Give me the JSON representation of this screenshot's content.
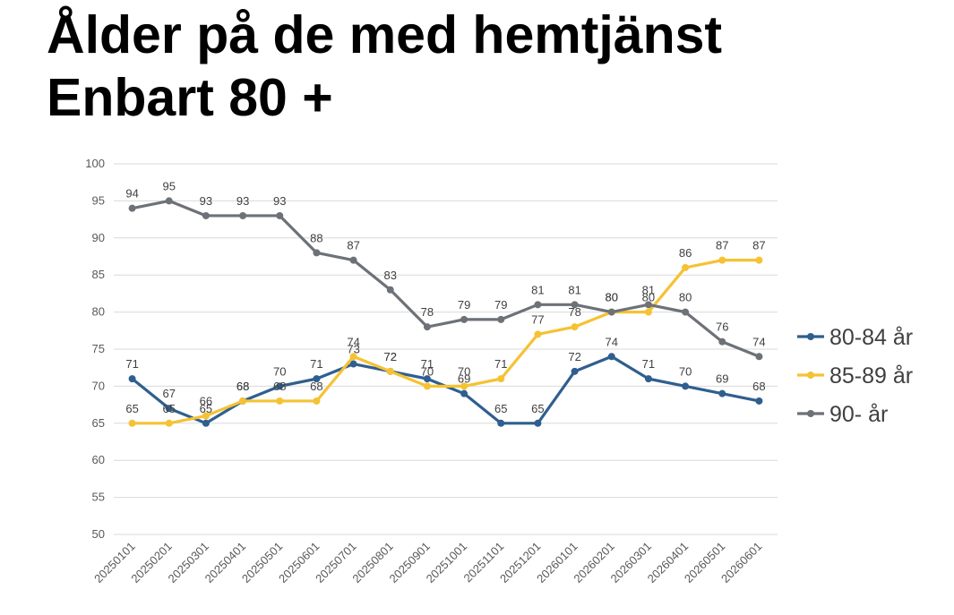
{
  "title_line1": "Ålder på de med hemtjänst",
  "title_line2": "Enbart 80 +",
  "chart_data": {
    "type": "line",
    "categories": [
      "20250101",
      "20250201",
      "20250301",
      "20250401",
      "20250501",
      "20250601",
      "20250701",
      "20250801",
      "20250901",
      "20251001",
      "20251101",
      "20251201",
      "20260101",
      "20260201",
      "20260301",
      "20260401",
      "20260501",
      "20260601"
    ],
    "ylim": [
      50,
      100
    ],
    "yticks": [
      50,
      55,
      60,
      65,
      70,
      75,
      80,
      85,
      90,
      95,
      100
    ],
    "grid": true,
    "legend_position": "right",
    "series": [
      {
        "name": "80-84 år",
        "color": "#2f5f8f",
        "values": [
          71,
          67,
          65,
          68,
          70,
          71,
          73,
          72,
          71,
          69,
          65,
          65,
          72,
          74,
          71,
          70,
          69,
          68
        ]
      },
      {
        "name": "85-89 år",
        "color": "#f5c233",
        "values": [
          65,
          65,
          66,
          68,
          68,
          68,
          74,
          72,
          70,
          70,
          71,
          77,
          78,
          80,
          80,
          86,
          87,
          87
        ]
      },
      {
        "name": "90- år",
        "color": "#6d7178",
        "values": [
          94,
          95,
          93,
          93,
          93,
          88,
          87,
          83,
          78,
          79,
          79,
          81,
          81,
          80,
          81,
          80,
          76,
          74
        ]
      }
    ]
  }
}
